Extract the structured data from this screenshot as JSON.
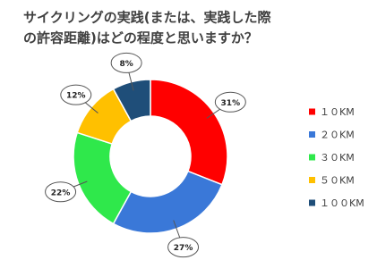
{
  "chart_data": {
    "type": "donut",
    "title": [
      "サイクリングの実践(または、実践した際",
      "の許容距離)はどの程度と思いますか？"
    ],
    "categories": [
      "１０KM",
      "２０KM",
      "３０KM",
      "５０KM",
      "１００KM"
    ],
    "values": [
      31,
      27,
      22,
      12,
      8
    ],
    "value_labels": [
      "31%",
      "27%",
      "22%",
      "12%",
      "8%"
    ],
    "colors": [
      "#ff0000",
      "#3a78d8",
      "#2fe84b",
      "#ffc000",
      "#1f4e79"
    ],
    "legend": "right"
  }
}
